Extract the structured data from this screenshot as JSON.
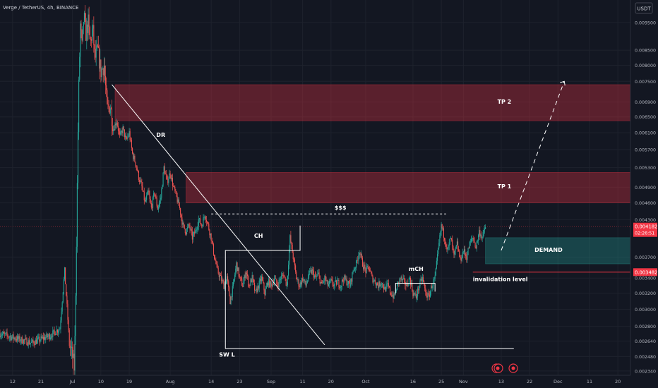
{
  "header": {
    "symbol_title": "Verge / TetherUS, 4h, BINANCE",
    "currency_button": "USDT"
  },
  "chart_data": {
    "type": "candlestick",
    "title": "Verge / TetherUS, 4h, BINANCE",
    "xlabel": "",
    "ylabel": "",
    "y_scale": "log",
    "ylim": [
      0.0023,
      0.0104
    ],
    "grid": true,
    "x_ticks": [
      {
        "label": "12",
        "t": 4
      },
      {
        "label": "21",
        "t": 13
      },
      {
        "label": "Jul",
        "t": 23
      },
      {
        "label": "10",
        "t": 32
      },
      {
        "label": "19",
        "t": 41
      },
      {
        "label": "Aug",
        "t": 54
      },
      {
        "label": "14",
        "t": 67
      },
      {
        "label": "23",
        "t": 76
      },
      {
        "label": "Sep",
        "t": 86
      },
      {
        "label": "11",
        "t": 96
      },
      {
        "label": "20",
        "t": 105
      },
      {
        "label": "Oct",
        "t": 116
      },
      {
        "label": "16",
        "t": 131
      },
      {
        "label": "25",
        "t": 140
      },
      {
        "label": "Nov",
        "t": 147
      },
      {
        "label": "13",
        "t": 159
      },
      {
        "label": "22",
        "t": 168
      },
      {
        "label": "Dec",
        "t": 177
      },
      {
        "label": "11",
        "t": 187
      },
      {
        "label": "20",
        "t": 196
      }
    ],
    "y_ticks": [
      "0.009500",
      "0.008500",
      "0.008000",
      "0.007500",
      "0.006900",
      "0.006500",
      "0.006100",
      "0.005700",
      "0.005300",
      "0.004900",
      "0.004600",
      "0.004300",
      "0.003700",
      "0.003400",
      "0.003200",
      "0.003000",
      "0.002800",
      "0.002640",
      "0.002480",
      "0.002340"
    ],
    "price_labels": [
      {
        "name": "last-price",
        "value": "0.004182",
        "countdown": "02:26:51",
        "color": "#f23645"
      },
      {
        "name": "invalidation-price",
        "value": "0.003482",
        "color": "#f23645"
      }
    ],
    "path_points": [
      [
        0,
        0.00272
      ],
      [
        10,
        0.00262
      ],
      [
        16,
        0.0027
      ],
      [
        19,
        0.00278
      ],
      [
        20.5,
        0.0035
      ],
      [
        21.3,
        0.003
      ],
      [
        22,
        0.0026
      ],
      [
        23,
        0.00248
      ],
      [
        23.6,
        0.00235
      ],
      [
        24.2,
        0.0038
      ],
      [
        24.9,
        0.007
      ],
      [
        25.5,
        0.0094
      ],
      [
        26,
        0.0086
      ],
      [
        26.6,
        0.0098
      ],
      [
        27.2,
        0.00905
      ],
      [
        28,
        0.0095
      ],
      [
        28.6,
        0.0087
      ],
      [
        29.4,
        0.0093
      ],
      [
        30.1,
        0.0082
      ],
      [
        31,
        0.0085
      ],
      [
        32,
        0.0078
      ],
      [
        33,
        0.008
      ],
      [
        34,
        0.0067
      ],
      [
        35,
        0.0068
      ],
      [
        36,
        0.0062
      ],
      [
        37,
        0.0064
      ],
      [
        38,
        0.006
      ],
      [
        39,
        0.0062
      ],
      [
        40,
        0.0059
      ],
      [
        41,
        0.0061
      ],
      [
        42,
        0.0056
      ],
      [
        43,
        0.0054
      ],
      [
        44,
        0.0051
      ],
      [
        45,
        0.0049
      ],
      [
        46,
        0.0046
      ],
      [
        47,
        0.0048
      ],
      [
        48,
        0.0045
      ],
      [
        49,
        0.0048
      ],
      [
        50,
        0.0045
      ],
      [
        51,
        0.0047
      ],
      [
        52,
        0.0053
      ],
      [
        53,
        0.005
      ],
      [
        54,
        0.0052
      ],
      [
        55,
        0.0049
      ],
      [
        56,
        0.0047
      ],
      [
        57,
        0.0045
      ],
      [
        58,
        0.0042
      ],
      [
        59,
        0.0041
      ],
      [
        60,
        0.0042
      ],
      [
        61,
        0.004
      ],
      [
        62,
        0.0041
      ],
      [
        63,
        0.0043
      ],
      [
        64,
        0.0042
      ],
      [
        65,
        0.0044
      ],
      [
        66,
        0.0042
      ],
      [
        67,
        0.004
      ],
      [
        68,
        0.0037
      ],
      [
        69,
        0.0035
      ],
      [
        70,
        0.0034
      ],
      [
        71,
        0.0033
      ],
      [
        72,
        0.0034
      ],
      [
        73,
        0.0031
      ],
      [
        74,
        0.0033
      ],
      [
        75,
        0.0036
      ],
      [
        76,
        0.0034
      ],
      [
        77,
        0.0033
      ],
      [
        78,
        0.0035
      ],
      [
        79,
        0.0033
      ],
      [
        80,
        0.0034
      ],
      [
        81,
        0.0032
      ],
      [
        82,
        0.0033
      ],
      [
        83,
        0.0034
      ],
      [
        84,
        0.0032
      ],
      [
        85,
        0.00335
      ],
      [
        86,
        0.0033
      ],
      [
        87,
        0.0034
      ],
      [
        88,
        0.0033
      ],
      [
        89,
        0.0034
      ],
      [
        90,
        0.00345
      ],
      [
        91,
        0.0033
      ],
      [
        92,
        0.004
      ],
      [
        93,
        0.0037
      ],
      [
        94,
        0.0034
      ],
      [
        95,
        0.0033
      ],
      [
        96,
        0.0034
      ],
      [
        97,
        0.0033
      ],
      [
        98,
        0.00345
      ],
      [
        99,
        0.0035
      ],
      [
        100,
        0.0034
      ],
      [
        101,
        0.00345
      ],
      [
        102,
        0.0033
      ],
      [
        103,
        0.0034
      ],
      [
        104,
        0.0033
      ],
      [
        105,
        0.00335
      ],
      [
        106,
        0.0033
      ],
      [
        107,
        0.00335
      ],
      [
        108,
        0.0033
      ],
      [
        109,
        0.0034
      ],
      [
        110,
        0.00335
      ],
      [
        111,
        0.0033
      ],
      [
        112,
        0.0035
      ],
      [
        113,
        0.0036
      ],
      [
        114,
        0.0038
      ],
      [
        115,
        0.0036
      ],
      [
        116,
        0.0035
      ],
      [
        117,
        0.00355
      ],
      [
        118,
        0.0034
      ],
      [
        119,
        0.00335
      ],
      [
        120,
        0.0033
      ],
      [
        121,
        0.00335
      ],
      [
        122,
        0.00325
      ],
      [
        123,
        0.0033
      ],
      [
        124,
        0.0032
      ],
      [
        125,
        0.00315
      ],
      [
        126,
        0.0033
      ],
      [
        127,
        0.0034
      ],
      [
        128,
        0.00335
      ],
      [
        129,
        0.0033
      ],
      [
        130,
        0.0034
      ],
      [
        131,
        0.0032
      ],
      [
        132,
        0.00315
      ],
      [
        133,
        0.0033
      ],
      [
        134,
        0.0034
      ],
      [
        135,
        0.0032
      ],
      [
        136,
        0.00315
      ],
      [
        137,
        0.0033
      ],
      [
        138,
        0.0034
      ],
      [
        139,
        0.0038
      ],
      [
        140,
        0.0042
      ],
      [
        141,
        0.004
      ],
      [
        142,
        0.0038
      ],
      [
        143,
        0.004
      ],
      [
        144,
        0.0037
      ],
      [
        145,
        0.0039
      ],
      [
        146,
        0.00365
      ],
      [
        147,
        0.0038
      ],
      [
        148,
        0.0037
      ],
      [
        149,
        0.0039
      ],
      [
        150,
        0.004
      ],
      [
        151,
        0.00385
      ],
      [
        152,
        0.0041
      ],
      [
        153,
        0.004
      ],
      [
        154,
        0.00418
      ]
    ],
    "zones": [
      {
        "name": "TP 2",
        "y_range": [
          0.0064,
          0.0074
        ],
        "t_start": 36.5,
        "color": "#f23645"
      },
      {
        "name": "TP 1",
        "y_range": [
          0.0046,
          0.0052
        ],
        "t_start": 59,
        "color": "#f23645"
      },
      {
        "name": "DEMAND",
        "y_range": [
          0.0036,
          0.004
        ],
        "t_start": 154,
        "color": "#26a69a"
      }
    ],
    "lines": [
      {
        "name": "descending-resistance",
        "from": [
          35.5,
          0.0074
        ],
        "to": [
          103,
          0.0026
        ]
      },
      {
        "name": "liquidity-level",
        "from": [
          67,
          0.0044
        ],
        "to": [
          141.5,
          0.0044
        ],
        "style": "dashed"
      },
      {
        "name": "sell-side-low",
        "from": [
          71.5,
          0.00256
        ],
        "to": [
          163,
          0.00256
        ]
      },
      {
        "name": "invalidation-level",
        "from": [
          150,
          0.003482
        ],
        "to": [
          200,
          0.003482
        ]
      },
      {
        "name": "projection",
        "from": [
          159,
          0.0038
        ],
        "to": [
          179,
          0.0075
        ],
        "style": "dashed"
      }
    ],
    "annotations": [
      {
        "text": "DR",
        "t": 51,
        "y": 0.006
      },
      {
        "text": "$$$",
        "t": 108,
        "y": 0.00448
      },
      {
        "text": "CH",
        "t": 82,
        "y": 0.004
      },
      {
        "text": "mCH",
        "t": 132,
        "y": 0.0035
      },
      {
        "text": "TP 2",
        "t": 160,
        "y": 0.00685
      },
      {
        "text": "TP 1",
        "t": 160,
        "y": 0.00488
      },
      {
        "text": "DEMAND",
        "t": 174,
        "y": 0.00378
      },
      {
        "text": "invalidation level",
        "t": 150,
        "y": 0.00336
      },
      {
        "text": "SW L",
        "t": 72,
        "y": 0.00248
      }
    ]
  },
  "colors": {
    "background": "#131722",
    "grid": "#1e222d",
    "up": "#26a69a",
    "down": "#ef5350",
    "text": "#b2b5be",
    "annotation_text": "#ffffff",
    "price_label": "#f23645"
  }
}
